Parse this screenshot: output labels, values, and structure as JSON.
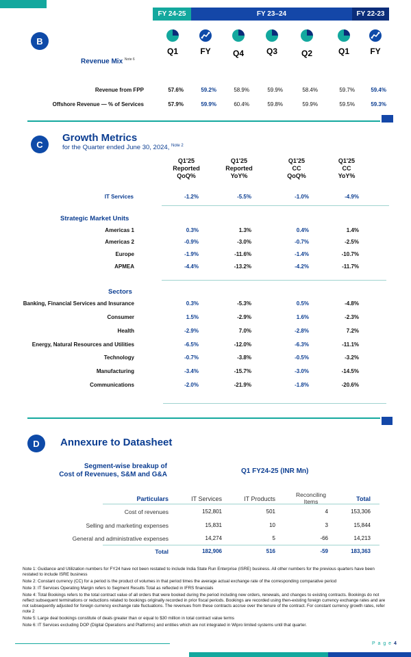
{
  "period_tabs": [
    "FY 24-25",
    "FY 23–24",
    "FY 22-23"
  ],
  "section_b": {
    "badge": "B",
    "title": "Revenue Mix",
    "note": "Note 6",
    "columns": [
      "Q1",
      "FY",
      "Q4",
      "Q3",
      "Q2",
      "Q1",
      "FY"
    ],
    "icons": [
      "pie-quarter-icon",
      "line-chart-icon",
      "pie-quarter-icon",
      "pie-quarter-icon",
      "pie-quarter-icon",
      "pie-quarter-icon",
      "line-chart-icon"
    ],
    "rows": [
      {
        "label": "Revenue from FPP",
        "values": [
          "57.6%",
          "59.2%",
          "58.9%",
          "59.9%",
          "58.4%",
          "59.7%",
          "59.4%"
        ]
      },
      {
        "label": "Offshore Revenue — % of Services",
        "values": [
          "57.9%",
          "59.9%",
          "60.4%",
          "59.8%",
          "59.9%",
          "59.5%",
          "59.3%"
        ]
      }
    ]
  },
  "section_c": {
    "badge": "C",
    "title": "Growth Metrics",
    "subtitle": "for the Quarter ended June 30, 2024,",
    "note": "Note 2",
    "headers": [
      [
        "Q1'25",
        "Reported",
        "QoQ%"
      ],
      [
        "Q1'25",
        "Reported",
        "YoY%"
      ],
      [
        "Q1'25",
        "CC",
        "QoQ%"
      ],
      [
        "Q1'25",
        "CC",
        "YoY%"
      ]
    ],
    "it_services": {
      "label": "IT Services",
      "values": [
        "-1.2%",
        "-5.5%",
        "-1.0%",
        "-4.9%"
      ]
    },
    "smu_title": "Strategic Market Units",
    "smu_rows": [
      {
        "label": "Americas 1",
        "values": [
          "0.3%",
          "1.3%",
          "0.4%",
          "1.4%"
        ]
      },
      {
        "label": "Americas 2",
        "values": [
          "-0.9%",
          "-3.0%",
          "-0.7%",
          "-2.5%"
        ]
      },
      {
        "label": "Europe",
        "values": [
          "-1.9%",
          "-11.6%",
          "-1.4%",
          "-10.7%"
        ]
      },
      {
        "label": "APMEA",
        "values": [
          "-4.4%",
          "-13.2%",
          "-4.2%",
          "-11.7%"
        ]
      }
    ],
    "sectors_title": "Sectors",
    "sector_rows": [
      {
        "label": "Banking, Financial Services and Insurance",
        "values": [
          "0.3%",
          "-5.3%",
          "0.5%",
          "-4.8%"
        ]
      },
      {
        "label": "Consumer",
        "values": [
          "1.5%",
          "-2.9%",
          "1.6%",
          "-2.3%"
        ]
      },
      {
        "label": "Health",
        "values": [
          "-2.9%",
          "7.0%",
          "-2.8%",
          "7.2%"
        ]
      },
      {
        "label": "Energy, Natural Resources and Utilities",
        "values": [
          "-6.5%",
          "-12.0%",
          "-6.3%",
          "-11.1%"
        ]
      },
      {
        "label": "Technology",
        "values": [
          "-0.7%",
          "-3.8%",
          "-0.5%",
          "-3.2%"
        ]
      },
      {
        "label": "Manufacturing",
        "values": [
          "-3.4%",
          "-15.7%",
          "-3.0%",
          "-14.5%"
        ]
      },
      {
        "label": "Communications",
        "values": [
          "-2.0%",
          "-21.9%",
          "-1.8%",
          "-20.6%"
        ]
      }
    ]
  },
  "section_d": {
    "badge": "D",
    "title": "Annexure to Datasheet",
    "subtitle_line1": "Segment-wise breakup of",
    "subtitle_line2": "Cost of Revenues, S&M and G&A",
    "period": "Q1 FY24-25 (INR Mn)",
    "headers": [
      "Particulars",
      "IT Services",
      "IT Products",
      "Reconciling Items",
      "Total"
    ],
    "rows": [
      {
        "label": "Cost of revenues",
        "values": [
          "152,801",
          "501",
          "4",
          "153,306"
        ]
      },
      {
        "label": "Selling and marketing expenses",
        "values": [
          "15,831",
          "10",
          "3",
          "15,844"
        ]
      },
      {
        "label": "General and administrative expenses",
        "values": [
          "14,274",
          "5",
          "-66",
          "14,213"
        ]
      }
    ],
    "total": {
      "label": "Total",
      "values": [
        "182,906",
        "516",
        "-59",
        "183,363"
      ]
    }
  },
  "notes": [
    "Note 1: Guidance and Utilization numbers for FY24 have not been restated to include India State Run Enterprise (ISRE) business. All other numbers for the previous quarters have been restated to include ISRE business",
    "Note 2: Constant currency (CC) for a period is the product of volumes in that period times the average actual exchange rate of the corresponding comparative period",
    "Note 3: IT Services Operating Margin refers to Segment Results Total as reflected in IFRS financials",
    "Note 4: Total Bookings refers to the total contract value of all orders that were booked during the period including new orders, renewals, and changes to existing contracts. Bookings do not reflect subsequent terminations or reductions related to bookings originally recorded in prior fiscal periods. Bookings are recorded using then-existing foreign currency exchange rates and are not subsequently adjusted for foreign currency exchange rate fluctuations. The revenues from these contracts accrue over the tenure of the contract. For constant currency growth rates, refer note 2",
    "Note 5: Large deal bookings constitute of deals greater than or equal to $30 million in total contract value terms",
    "Note 6: IT Services excluding DOP (Digital Operations and Platforms) and entities which are not integrated in Wipro limited systems until that quarter."
  ],
  "footer": {
    "page_label": "P a g e",
    "page_number": "4"
  }
}
